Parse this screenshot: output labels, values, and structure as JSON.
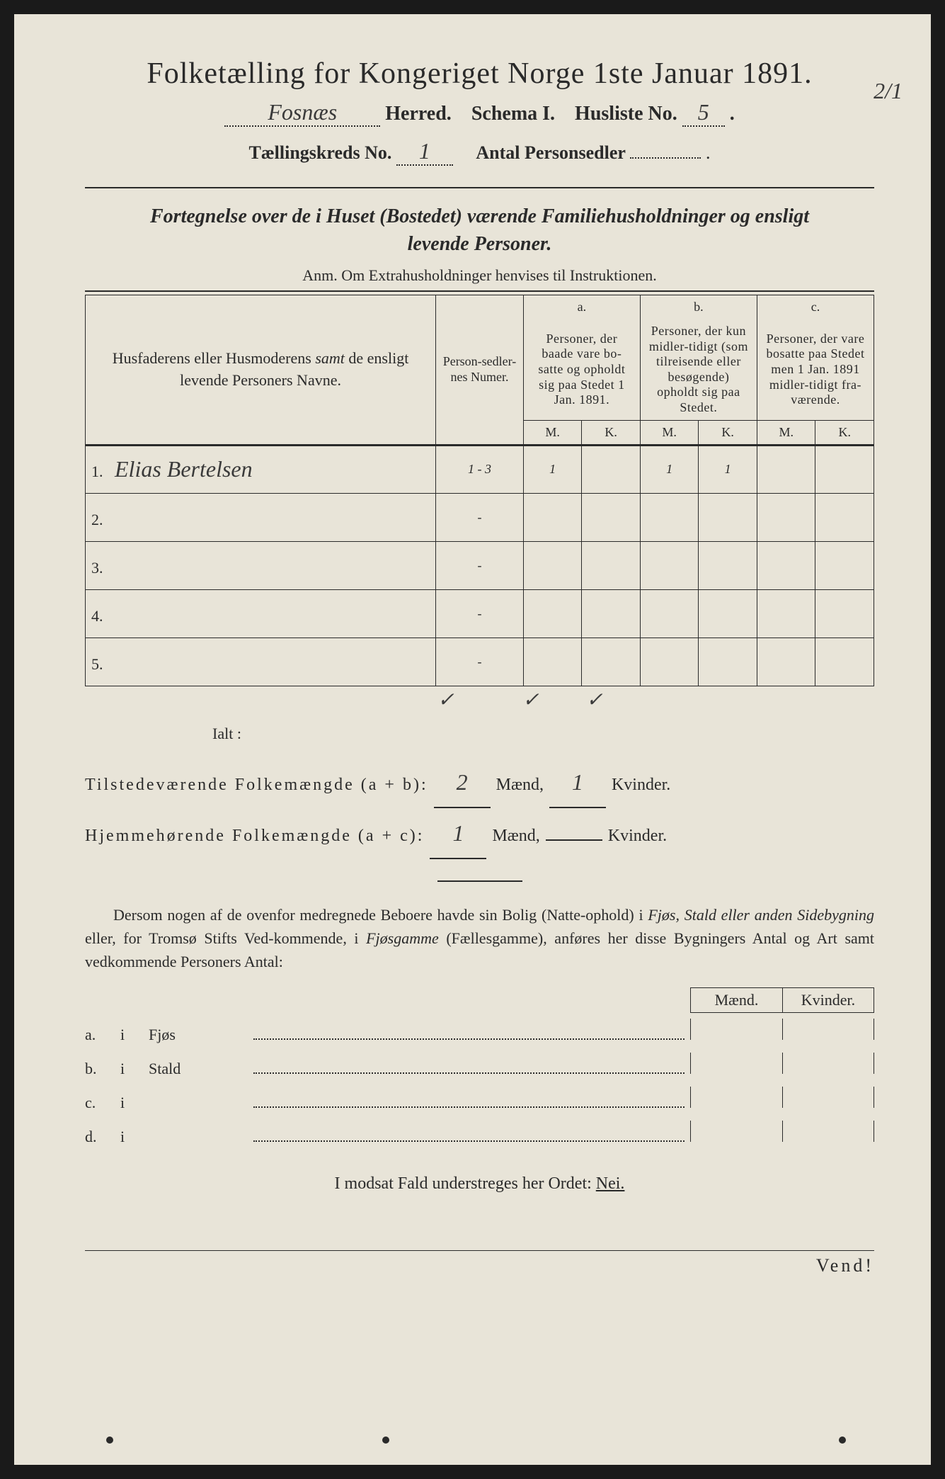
{
  "header": {
    "title": "Folketælling for Kongeriget Norge 1ste Januar 1891.",
    "herred_value": "Fosnæs",
    "herred_label": "Herred.",
    "schema_label": "Schema I.",
    "husliste_label": "Husliste No.",
    "husliste_value": "5",
    "kreds_label": "Tællingskreds No.",
    "kreds_value": "1",
    "antal_label": "Antal Personsedler",
    "antal_value": "",
    "corner_note": "2/1"
  },
  "subtitle": {
    "line1": "Fortegnelse over de i Huset (Bostedet) værende Familiehusholdninger og ensligt",
    "line2": "levende Personer.",
    "anm": "Anm.  Om Extrahusholdninger henvises til Instruktionen."
  },
  "columns": {
    "name_header": "Husfaderens eller Husmoderens samt de ensligt levende Personers Navne.",
    "personsedler": "Person-sedler-nes Numer.",
    "a_label": "a.",
    "a_text": "Personer, der baade vare bo-satte og opholdt sig paa Stedet 1 Jan. 1891.",
    "b_label": "b.",
    "b_text": "Personer, der kun midler-tidigt (som tilreisende eller besøgende) opholdt sig paa Stedet.",
    "c_label": "c.",
    "c_text": "Personer, der vare bosatte paa Stedet men 1 Jan. 1891 midler-tidigt fra-værende.",
    "m": "M.",
    "k": "K."
  },
  "rows": [
    {
      "num": "1.",
      "name": "Elias Bertelsen",
      "sedler": "1 - 3",
      "a_m": "1",
      "a_k": "",
      "b_m": "1",
      "b_k": "1",
      "c_m": "",
      "c_k": ""
    },
    {
      "num": "2.",
      "name": "",
      "sedler": "-",
      "a_m": "",
      "a_k": "",
      "b_m": "",
      "b_k": "",
      "c_m": "",
      "c_k": ""
    },
    {
      "num": "3.",
      "name": "",
      "sedler": "-",
      "a_m": "",
      "a_k": "",
      "b_m": "",
      "b_k": "",
      "c_m": "",
      "c_k": ""
    },
    {
      "num": "4.",
      "name": "",
      "sedler": "-",
      "a_m": "",
      "a_k": "",
      "b_m": "",
      "b_k": "",
      "c_m": "",
      "c_k": ""
    },
    {
      "num": "5.",
      "name": "",
      "sedler": "-",
      "a_m": "",
      "a_k": "",
      "b_m": "",
      "b_k": "",
      "c_m": "",
      "c_k": ""
    }
  ],
  "checkmarks": {
    "a": "✓",
    "b": "✓",
    "c": "✓"
  },
  "summary": {
    "ialt": "Ialt :",
    "tilstede_label": "Tilstedeværende Folkemængde (a + b):",
    "tilstede_m": "2",
    "tilstede_k": "1",
    "hjemme_label": "Hjemmehørende Folkemængde (a + c):",
    "hjemme_m": "1",
    "hjemme_k": "",
    "maend": "Mænd,",
    "kvinder": "Kvinder."
  },
  "paragraph": "Dersom nogen af de ovenfor medregnede Beboere havde sin Bolig (Natte-ophold) i Fjøs, Stald eller anden Sidebygning eller, for Tromsø Stifts Ved-kommende, i Fjøsgamme (Fællesgamme), anføres her disse Bygningers Antal og Art samt vedkommende Personers Antal:",
  "outbuildings": {
    "maend": "Mænd.",
    "kvinder": "Kvinder.",
    "rows": [
      {
        "letter": "a.",
        "i": "i",
        "name": "Fjøs"
      },
      {
        "letter": "b.",
        "i": "i",
        "name": "Stald"
      },
      {
        "letter": "c.",
        "i": "i",
        "name": ""
      },
      {
        "letter": "d.",
        "i": "i",
        "name": ""
      }
    ]
  },
  "footer": {
    "modsat": "I modsat Fald understreges her Ordet:",
    "nei": "Nei.",
    "vend": "Vend!"
  },
  "style": {
    "page_bg": "#e8e4d8",
    "text_color": "#2a2a2a",
    "handwriting_color": "#3a3a3a"
  }
}
